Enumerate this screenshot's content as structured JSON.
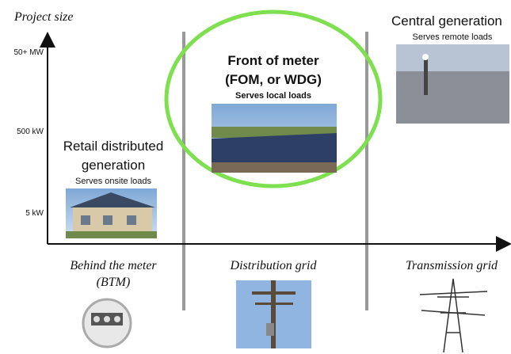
{
  "axis": {
    "title": "Project size",
    "levels": [
      "50+ MW",
      "500 kW",
      "5 kW"
    ]
  },
  "segments": [
    {
      "title_lines": [
        "Retail distributed",
        "generation"
      ],
      "subtitle": "Serves onsite loads",
      "zone_lines": [
        "Behind the meter",
        "(BTM)"
      ]
    },
    {
      "title_lines": [
        "Front of meter",
        "(FOM, or WDG)"
      ],
      "subtitle": "Serves local loads",
      "zone_lines": [
        "Distribution grid"
      ]
    },
    {
      "title_lines": [
        "Central generation"
      ],
      "subtitle": "Serves remote loads",
      "zone_lines": [
        "Transmission grid"
      ]
    }
  ]
}
